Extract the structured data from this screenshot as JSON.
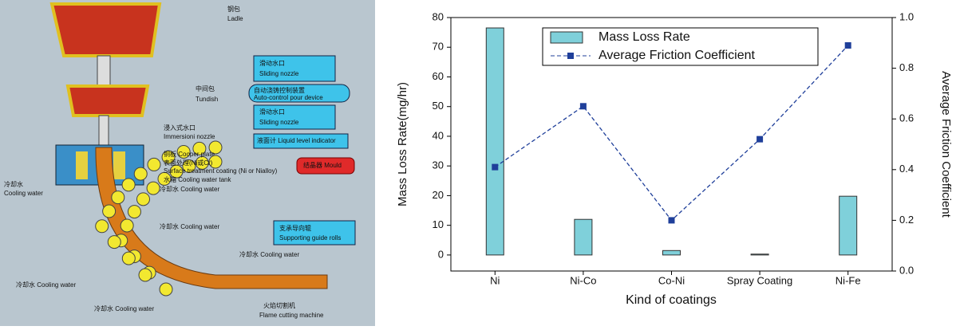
{
  "diagram": {
    "labels": [
      "钢包",
      "Ladle",
      "滑动水口",
      "Sliding nozzle",
      "中间包",
      "Tundish",
      "自动浇铸控制装置",
      "Auto-control pour device",
      "滑动水口",
      "Sliding nozzle",
      "浸入式水口",
      "Immersioni nozzle",
      "液面计 Liquid level indicator",
      "铜板 Cooper plate",
      "表面处理(Ni或Cr)",
      "Surface treatment coating (Ni or Nialloy)",
      "结晶器 Mould",
      "水箱 Cooling water tank",
      "冷却水 Cooling water",
      "冷却水",
      "Cooling water",
      "冷却水 Cooling water",
      "支承导向辊",
      "Supporting guide rolls",
      "冷却水 Cooling water",
      "冷却水 Cooling water",
      "冷却水 Cooling water",
      "火焰切割机",
      "Flame cutting machine"
    ]
  },
  "chart_data": {
    "type": "bar",
    "xlabel": "Kind of coatings",
    "ylabel": "Mass Loss Rate(mg/hr)",
    "y2label": "Average Friction Coefficient",
    "categories": [
      "Ni",
      "Ni-Co",
      "Co-Ni",
      "Spray Coating",
      "Ni-Fe"
    ],
    "series": [
      {
        "name": "Mass Loss Rate",
        "type": "bar",
        "color": "#7fd0da",
        "values": [
          76.5,
          12,
          1.5,
          0.3,
          19.8
        ]
      },
      {
        "name": "Average Friction Coefficient",
        "type": "line",
        "axis": "y2",
        "color": "#1f3f9a",
        "values": [
          0.41,
          0.65,
          0.2,
          0.52,
          0.89
        ]
      }
    ],
    "ylim": [
      -5.4,
      80
    ],
    "yticks": [
      0,
      10,
      20,
      30,
      40,
      50,
      60,
      70,
      80
    ],
    "y2lim": [
      0,
      1
    ],
    "y2ticks": [
      {
        "value": 0,
        "label": "0.0"
      },
      0.2,
      0.4,
      0.6,
      0.8,
      {
        "value": 1,
        "label": "1.0"
      }
    ]
  }
}
